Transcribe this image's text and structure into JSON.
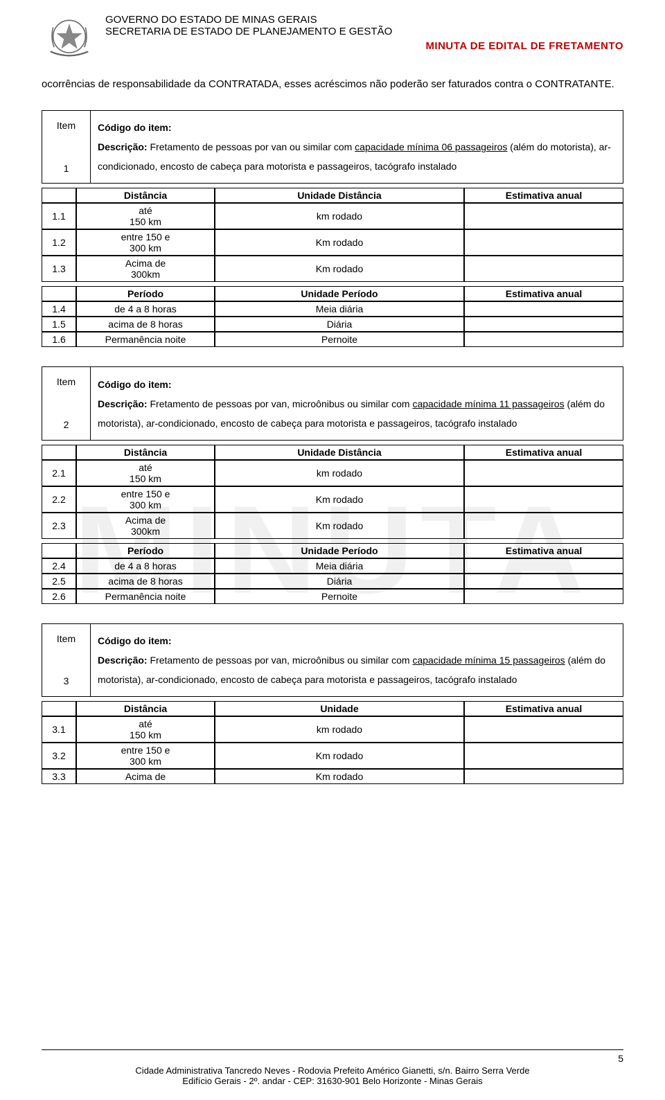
{
  "header": {
    "gov_line1": "GOVERNO DO ESTADO DE MINAS GERAIS",
    "gov_line2": "SECRETARIA DE ESTADO DE PLANEJAMENTO E GESTÃO",
    "minuta_title": "MINUTA DE EDITAL DE FRETAMENTO"
  },
  "watermark_text": "MINUTA",
  "intro_paragraph": "ocorrências de responsabilidade da CONTRATADA, esses acréscimos não poderão ser faturados contra o CONTRATANTE.",
  "labels": {
    "item": "Item",
    "codigo": "Código do item:",
    "descricao_prefix": "Descrição:",
    "distancia": "Distância",
    "unidade_distancia": "Unidade Distância",
    "unidade": "Unidade",
    "estimativa": "Estimativa anual",
    "periodo": "Período",
    "unidade_periodo": "Unidade Período"
  },
  "items": [
    {
      "num": "1",
      "desc_plain": " Fretamento de pessoas por van ou similar com ",
      "desc_underline": "capacidade mínima 06 passageiros",
      "desc_tail": " (além do motorista), ar-condicionado, encosto de cabeça para motorista e passageiros, tacógrafo instalado",
      "unit_header": "Unidade Distância",
      "distancia": [
        {
          "idx": "1.1",
          "label": "até\n150 km",
          "unit": "km rodado",
          "est": ""
        },
        {
          "idx": "1.2",
          "label": "entre 150 e\n300 km",
          "unit": "Km rodado",
          "est": ""
        },
        {
          "idx": "1.3",
          "label": "Acima de\n300km",
          "unit": "Km rodado",
          "est": ""
        }
      ],
      "periodo": [
        {
          "idx": "1.4",
          "label": "de 4 a 8 horas",
          "unit": "Meia diária",
          "est": ""
        },
        {
          "idx": "1.5",
          "label": "acima de 8 horas",
          "unit": "Diária",
          "est": ""
        },
        {
          "idx": "1.6",
          "label": "Permanência noite",
          "unit": "Pernoite",
          "est": ""
        }
      ]
    },
    {
      "num": "2",
      "desc_plain": " Fretamento de pessoas por van, microônibus ou similar com ",
      "desc_underline": "capacidade mínima 11 passageiros",
      "desc_tail": " (além do motorista), ar-condicionado, encosto de cabeça para motorista e passageiros, tacógrafo instalado",
      "unit_header": "Unidade Distância",
      "distancia": [
        {
          "idx": "2.1",
          "label": "até\n150 km",
          "unit": "km rodado",
          "est": ""
        },
        {
          "idx": "2.2",
          "label": "entre 150 e\n300 km",
          "unit": "Km rodado",
          "est": ""
        },
        {
          "idx": "2.3",
          "label": "Acima de\n300km",
          "unit": "Km rodado",
          "est": ""
        }
      ],
      "periodo": [
        {
          "idx": "2.4",
          "label": "de 4 a 8 horas",
          "unit": "Meia diária",
          "est": ""
        },
        {
          "idx": "2.5",
          "label": "acima de 8 horas",
          "unit": "Diária",
          "est": ""
        },
        {
          "idx": "2.6",
          "label": "Permanência noite",
          "unit": "Pernoite",
          "est": ""
        }
      ]
    },
    {
      "num": "3",
      "desc_plain": " Fretamento de pessoas por van, microônibus ou similar com ",
      "desc_underline": "capacidade mínima 15 passageiros",
      "desc_tail": " (além do motorista), ar-condicionado, encosto de cabeça para motorista e passageiros, tacógrafo instalado",
      "unit_header": "Unidade",
      "distancia": [
        {
          "idx": "3.1",
          "label": "até\n150 km",
          "unit": "km rodado",
          "est": ""
        },
        {
          "idx": "3.2",
          "label": "entre 150 e\n300 km",
          "unit": "Km rodado",
          "est": ""
        },
        {
          "idx": "3.3",
          "label": "Acima de",
          "unit": "Km rodado",
          "est": ""
        }
      ],
      "periodo": null
    }
  ],
  "footer": {
    "page_num": "5",
    "line1": "Cidade Administrativa Tancredo Neves - Rodovia Prefeito Américo Gianetti, s/n. Bairro Serra Verde",
    "line2": "Edifício Gerais - 2º. andar - CEP: 31630-901 Belo Horizonte - Minas Gerais"
  },
  "colors": {
    "title_red": "#c00000",
    "watermark_gray": "#f0f0f0",
    "text": "#000000",
    "border": "#000000"
  }
}
